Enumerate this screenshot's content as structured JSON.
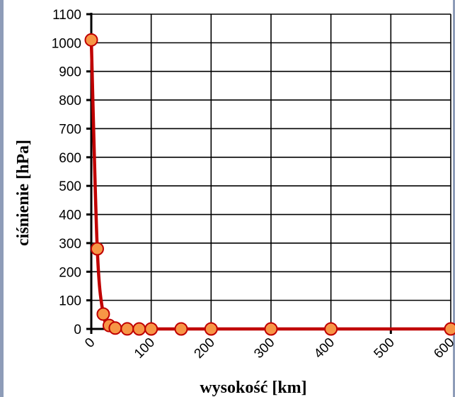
{
  "chart_data": {
    "type": "line",
    "title": "",
    "xlabel": "wysokość [km]",
    "ylabel": "ciśnienie [hPa]",
    "xlim": [
      0,
      600
    ],
    "ylim": [
      0,
      1100
    ],
    "x_ticks": [
      0,
      100,
      200,
      300,
      400,
      500,
      600
    ],
    "y_ticks": [
      0,
      100,
      200,
      300,
      400,
      500,
      600,
      700,
      800,
      900,
      1000,
      1100
    ],
    "grid": true,
    "legend": "none",
    "series": [
      {
        "x": [
          0,
          10,
          20,
          30,
          40,
          60,
          80,
          100,
          150,
          200,
          300,
          400,
          600
        ],
        "y": [
          1010,
          280,
          52,
          12,
          3,
          0.2,
          0.01,
          0.001,
          0,
          0,
          0,
          0,
          0
        ]
      }
    ],
    "colors": {
      "line": "#c00000",
      "marker_fill": "#f79646",
      "marker_edge": "#c00000",
      "grid": "#000000",
      "frame": "#8e9cb8"
    }
  }
}
